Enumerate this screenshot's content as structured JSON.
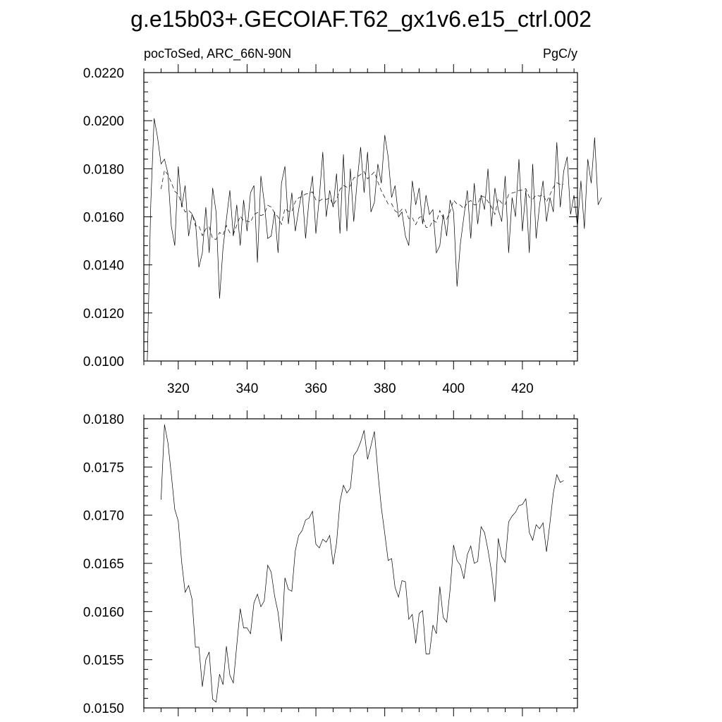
{
  "figure": {
    "title": "g.e15b03+.GECOIAF.T62_gx1v6.e15_ctrl.002"
  },
  "chart_data": [
    {
      "type": "line",
      "subtitle_left": "pocToSed, ARC_66N-90N",
      "subtitle_right": "PgC/y",
      "xlim": [
        310,
        436
      ],
      "ylim": [
        0.01,
        0.022
      ],
      "xticks": [
        320,
        340,
        360,
        380,
        400,
        420
      ],
      "xtick_labels": [
        "320",
        "340",
        "360",
        "380",
        "400",
        "420"
      ],
      "yticks": [
        0.01,
        0.012,
        0.014,
        0.016,
        0.018,
        0.02,
        0.022
      ],
      "ytick_labels": [
        "0.0100",
        "0.0120",
        "0.0140",
        "0.0160",
        "0.0180",
        "0.0200",
        "0.0220"
      ],
      "grid": false,
      "series": [
        {
          "style": "solid",
          "x_start": 311,
          "values": [
            0.01,
            0.0165,
            0.0201,
            0.0193,
            0.0182,
            0.0184,
            0.0178,
            0.0156,
            0.0148,
            0.0181,
            0.0164,
            0.0173,
            0.0152,
            0.0161,
            0.0158,
            0.0139,
            0.0145,
            0.0164,
            0.0145,
            0.0172,
            0.0162,
            0.0126,
            0.0147,
            0.0159,
            0.0171,
            0.0152,
            0.0165,
            0.0148,
            0.0167,
            0.0154,
            0.017,
            0.0173,
            0.0141,
            0.0177,
            0.0166,
            0.0151,
            0.0152,
            0.0162,
            0.0145,
            0.0174,
            0.0181,
            0.0157,
            0.017,
            0.0154,
            0.0163,
            0.0171,
            0.0151,
            0.0167,
            0.0177,
            0.0153,
            0.0168,
            0.0187,
            0.016,
            0.0171,
            0.0164,
            0.0178,
            0.0153,
            0.0186,
            0.0154,
            0.018,
            0.0158,
            0.0175,
            0.0189,
            0.017,
            0.0187,
            0.0162,
            0.0166,
            0.0182,
            0.0174,
            0.0194,
            0.0185,
            0.0168,
            0.0173,
            0.016,
            0.0162,
            0.0152,
            0.0148,
            0.0175,
            0.0165,
            0.0172,
            0.0157,
            0.0169,
            0.0161,
            0.0163,
            0.0145,
            0.0148,
            0.0161,
            0.0152,
            0.0167,
            0.0162,
            0.0131,
            0.0149,
            0.016,
            0.0171,
            0.0151,
            0.0174,
            0.0157,
            0.0169,
            0.0163,
            0.018,
            0.0156,
            0.0172,
            0.0163,
            0.0158,
            0.0177,
            0.0145,
            0.0168,
            0.016,
            0.0184,
            0.0154,
            0.0171,
            0.0145,
            0.0182,
            0.0151,
            0.0165,
            0.0175,
            0.0158,
            0.0168,
            0.0162,
            0.0191,
            0.0164,
            0.0179,
            0.0185,
            0.0161,
            0.0169,
            0.0156,
            0.0175,
            0.0155,
            0.0184,
            0.0174,
            0.0193,
            0.0165,
            0.0168
          ]
        },
        {
          "style": "dashed",
          "x_start": 315,
          "values": [
            0.01716,
            0.01794,
            0.01775,
            0.01742,
            0.01706,
            0.01694,
            0.01651,
            0.0162,
            0.01627,
            0.01613,
            0.01563,
            0.01563,
            0.01522,
            0.0155,
            0.01558,
            0.01509,
            0.01506,
            0.01535,
            0.01524,
            0.01564,
            0.01534,
            0.01526,
            0.01565,
            0.01603,
            0.01583,
            0.01583,
            0.01577,
            0.01609,
            0.01618,
            0.01605,
            0.01611,
            0.01648,
            0.01641,
            0.01616,
            0.01599,
            0.01569,
            0.01635,
            0.01623,
            0.01621,
            0.01663,
            0.01679,
            0.01684,
            0.01695,
            0.01697,
            0.01704,
            0.0167,
            0.01666,
            0.01675,
            0.01672,
            0.01679,
            0.01649,
            0.01671,
            0.01714,
            0.01731,
            0.01723,
            0.01728,
            0.01762,
            0.01767,
            0.01776,
            0.01788,
            0.01758,
            0.01772,
            0.01787,
            0.01745,
            0.01708,
            0.01681,
            0.01653,
            0.01655,
            0.01625,
            0.01615,
            0.01632,
            0.01631,
            0.01592,
            0.01597,
            0.01567,
            0.01598,
            0.01601,
            0.01556,
            0.01556,
            0.01586,
            0.01577,
            0.01626,
            0.01594,
            0.01589,
            0.01623,
            0.01669,
            0.01653,
            0.01648,
            0.01634,
            0.01659,
            0.01668,
            0.0165,
            0.01652,
            0.01688,
            0.01682,
            0.01664,
            0.01642,
            0.0161,
            0.01676,
            0.01657,
            0.01651,
            0.01693,
            0.01699,
            0.01703,
            0.0171,
            0.01711,
            0.01717,
            0.01682,
            0.01674,
            0.0169,
            0.01686,
            0.01692,
            0.01662,
            0.01692,
            0.01723,
            0.01742,
            0.01734,
            0.01736
          ]
        }
      ]
    },
    {
      "type": "line",
      "xlim": [
        310,
        436
      ],
      "ylim": [
        0.015,
        0.018
      ],
      "xticks": [
        320,
        340,
        360,
        380,
        400,
        420
      ],
      "yticks": [
        0.015,
        0.0155,
        0.016,
        0.0165,
        0.017,
        0.0175,
        0.018
      ],
      "ytick_labels": [
        "0.0150",
        "0.0155",
        "0.0160",
        "0.0165",
        "0.0170",
        "0.0175",
        "0.0180"
      ],
      "grid": false,
      "series": [
        {
          "style": "solid",
          "x_start": 315,
          "values": [
            0.01716,
            0.01794,
            0.01775,
            0.01742,
            0.01706,
            0.01694,
            0.01651,
            0.0162,
            0.01627,
            0.01613,
            0.01563,
            0.01563,
            0.01522,
            0.0155,
            0.01558,
            0.01509,
            0.01506,
            0.01535,
            0.01524,
            0.01564,
            0.01534,
            0.01526,
            0.01565,
            0.01603,
            0.01583,
            0.01583,
            0.01577,
            0.01609,
            0.01618,
            0.01605,
            0.01611,
            0.01648,
            0.01641,
            0.01616,
            0.01599,
            0.01569,
            0.01635,
            0.01623,
            0.01621,
            0.01663,
            0.01679,
            0.01684,
            0.01695,
            0.01697,
            0.01704,
            0.0167,
            0.01666,
            0.01675,
            0.01672,
            0.01679,
            0.01649,
            0.01671,
            0.01714,
            0.01731,
            0.01723,
            0.01728,
            0.01762,
            0.01767,
            0.01776,
            0.01788,
            0.01758,
            0.01772,
            0.01787,
            0.01745,
            0.01708,
            0.01681,
            0.01653,
            0.01655,
            0.01625,
            0.01615,
            0.01632,
            0.01631,
            0.01592,
            0.01597,
            0.01567,
            0.01598,
            0.01601,
            0.01556,
            0.01556,
            0.01586,
            0.01577,
            0.01626,
            0.01594,
            0.01589,
            0.01623,
            0.01669,
            0.01653,
            0.01648,
            0.01634,
            0.01659,
            0.01668,
            0.0165,
            0.01652,
            0.01688,
            0.01682,
            0.01664,
            0.01642,
            0.0161,
            0.01676,
            0.01657,
            0.01651,
            0.01693,
            0.01699,
            0.01703,
            0.0171,
            0.01711,
            0.01717,
            0.01682,
            0.01674,
            0.0169,
            0.01686,
            0.01692,
            0.01662,
            0.01692,
            0.01723,
            0.01742,
            0.01734,
            0.01736
          ]
        }
      ]
    }
  ]
}
